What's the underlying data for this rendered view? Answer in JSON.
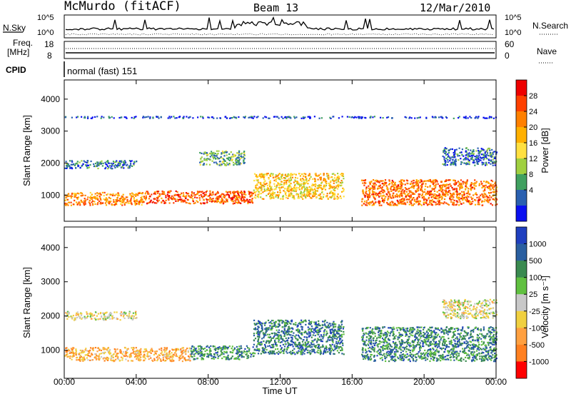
{
  "header": {
    "station": "McMurdo (fitACF)",
    "beam": "Beam 13",
    "date": "12/Mar/2010"
  },
  "status_panels": {
    "nsky_label": "N.Sky",
    "nsearch_label": "N.Search",
    "freq_label_line1": "Freq.",
    "freq_label_line2": "[MHz]",
    "nave_label": "Nave",
    "cpid_label": "CPID",
    "cpid_value": "normal (fast) 151",
    "noise_ticks": [
      "10^5",
      "10^0"
    ],
    "freq_ticks": [
      "18",
      "8"
    ],
    "nave_ticks": [
      "60",
      "0"
    ]
  },
  "chart_data": [
    {
      "type": "heatmap",
      "name": "power-panel",
      "ylabel": "Slant Range [km]",
      "ylim": [
        180,
        4600
      ],
      "yticks": [
        1000,
        2000,
        3000,
        4000
      ],
      "xlim": [
        0,
        24
      ],
      "colorbar": {
        "label": "Power [dB]",
        "ticks": [
          "28",
          "24",
          "20",
          "16",
          "12",
          "8",
          "4"
        ],
        "colors": [
          "#ee0000",
          "#ff4000",
          "#ff8000",
          "#ffb000",
          "#ffe040",
          "#a0d040",
          "#40a060",
          "#2a60b0",
          "#0a10f0"
        ]
      },
      "bands": [
        {
          "x0": 0,
          "x1": 4.5,
          "y0": 700,
          "y1": 1100,
          "level": 0.7
        },
        {
          "x0": 4.5,
          "x1": 10.5,
          "y0": 750,
          "y1": 1150,
          "level": 0.8
        },
        {
          "x0": 10.5,
          "x1": 15.5,
          "y0": 900,
          "y1": 1700,
          "level": 0.55
        },
        {
          "x0": 16.5,
          "x1": 24,
          "y0": 700,
          "y1": 1500,
          "level": 0.75
        },
        {
          "x0": 0,
          "x1": 4,
          "y0": 1850,
          "y1": 2100,
          "level": 0.2
        },
        {
          "x0": 7.5,
          "x1": 10,
          "y0": 1950,
          "y1": 2400,
          "level": 0.3
        },
        {
          "x0": 21,
          "x1": 24,
          "y0": 1950,
          "y1": 2500,
          "level": 0.2
        },
        {
          "x0": 0,
          "x1": 24,
          "y0": 3420,
          "y1": 3480,
          "level": 0.1
        }
      ]
    },
    {
      "type": "heatmap",
      "name": "velocity-panel",
      "ylabel": "Slant Range [km]",
      "ylim": [
        180,
        4600
      ],
      "yticks": [
        1000,
        2000,
        3000,
        4000
      ],
      "xlim": [
        0,
        24
      ],
      "colorbar": {
        "label": "Velocity [m s⁻¹]",
        "ticks": [
          "1000",
          "500",
          "100",
          "25",
          "-25",
          "-100",
          "-500",
          "-1000"
        ],
        "colors": [
          "#1f3fbf",
          "#2a5fa0",
          "#3a8a50",
          "#60c040",
          "#c8c8c8",
          "#f0d040",
          "#ffa040",
          "#ff8020",
          "#ff0000"
        ]
      },
      "bands": [
        {
          "x0": 0,
          "x1": 7,
          "y0": 700,
          "y1": 1100,
          "level": 0.3
        },
        {
          "x0": 7,
          "x1": 10.5,
          "y0": 750,
          "y1": 1150,
          "level": 0.75
        },
        {
          "x0": 10.5,
          "x1": 15.5,
          "y0": 900,
          "y1": 1900,
          "level": 0.78
        },
        {
          "x0": 16.5,
          "x1": 24,
          "y0": 700,
          "y1": 1700,
          "level": 0.75
        },
        {
          "x0": 0,
          "x1": 4,
          "y0": 1900,
          "y1": 2150,
          "level": 0.45
        },
        {
          "x0": 21,
          "x1": 24,
          "y0": 1950,
          "y1": 2500,
          "level": 0.45
        }
      ]
    }
  ],
  "x_axis": {
    "ticks": [
      "00:00",
      "04:00",
      "08:00",
      "12:00",
      "16:00",
      "20:00",
      "00:00"
    ],
    "label": "Time UT"
  }
}
